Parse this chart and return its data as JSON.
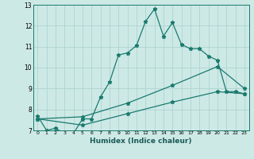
{
  "xlabel": "Humidex (Indice chaleur)",
  "bg_color": "#cde9e6",
  "grid_color": "#aed4d0",
  "line_color": "#1a7a6e",
  "xlim": [
    -0.5,
    23.5
  ],
  "ylim": [
    7,
    13
  ],
  "xticks": [
    0,
    1,
    2,
    3,
    4,
    5,
    6,
    7,
    8,
    9,
    10,
    11,
    12,
    13,
    14,
    15,
    16,
    17,
    18,
    19,
    20,
    21,
    22,
    23
  ],
  "yticks": [
    7,
    8,
    9,
    10,
    11,
    12,
    13
  ],
  "line1_x": [
    0,
    1,
    2,
    3,
    4,
    5,
    6,
    7,
    8,
    9,
    10,
    11,
    12,
    13,
    14,
    15,
    16,
    17,
    18,
    19,
    20,
    21,
    22,
    23
  ],
  "line1_y": [
    7.7,
    7.0,
    7.1,
    6.85,
    6.85,
    7.55,
    7.55,
    8.6,
    9.3,
    10.6,
    10.7,
    11.05,
    12.2,
    12.8,
    11.5,
    12.15,
    11.1,
    10.9,
    10.9,
    10.55,
    10.35,
    8.85,
    8.85,
    8.75
  ],
  "line2_x": [
    0,
    5,
    10,
    15,
    20,
    23
  ],
  "line2_y": [
    7.55,
    7.65,
    8.3,
    9.15,
    10.05,
    9.0
  ],
  "line3_x": [
    0,
    5,
    10,
    15,
    20,
    23
  ],
  "line3_y": [
    7.55,
    7.25,
    7.8,
    8.35,
    8.85,
    8.75
  ]
}
